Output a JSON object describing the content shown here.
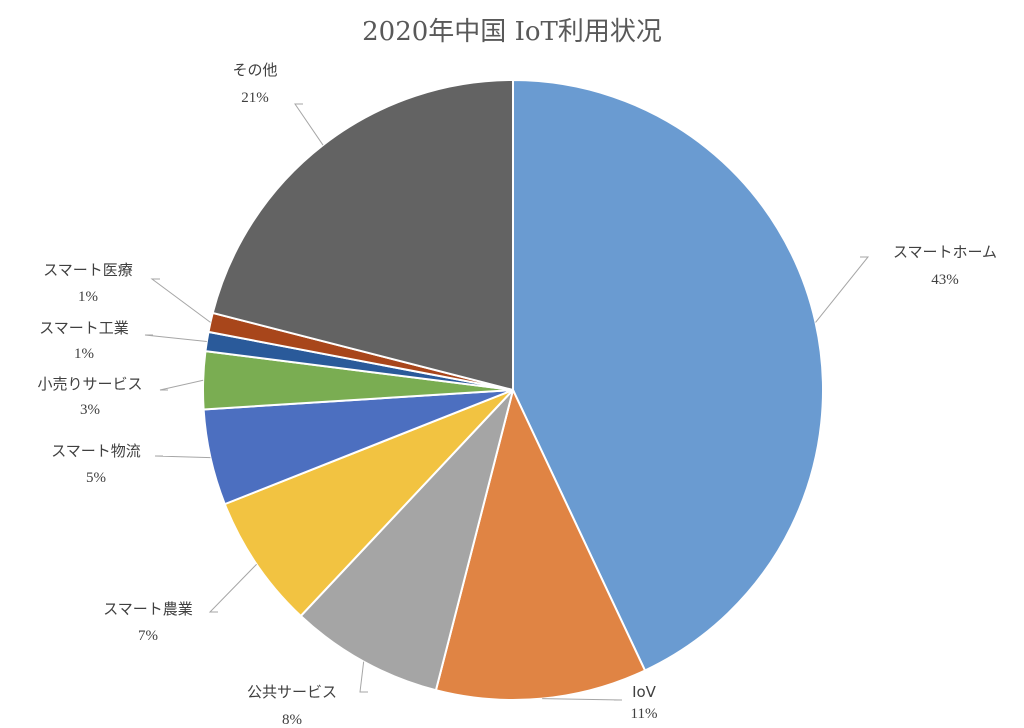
{
  "chart_data": {
    "type": "pie",
    "title": "2020年中国 IoT利用状况",
    "start_angle_deg": 0,
    "direction": "clockwise",
    "slices": [
      {
        "name": "スマートホーム",
        "value": 43,
        "label": "43%",
        "color": "#6A9BD1"
      },
      {
        "name": "IoV",
        "value": 11,
        "label": "11%",
        "color": "#E08444"
      },
      {
        "name": "公共サービス",
        "value": 8,
        "label": "8%",
        "color": "#A5A5A5"
      },
      {
        "name": "スマート農業",
        "value": 7,
        "label": "7%",
        "color": "#F2C341"
      },
      {
        "name": "スマート物流",
        "value": 5,
        "label": "5%",
        "color": "#4C6FC0"
      },
      {
        "name": "小売りサービス",
        "value": 3,
        "label": "3%",
        "color": "#7AAD52"
      },
      {
        "name": "スマート工業",
        "value": 1,
        "label": "1%",
        "color": "#2A5A9A"
      },
      {
        "name": "スマート医療",
        "value": 1,
        "label": "1%",
        "color": "#A8461B"
      },
      {
        "name": "その他",
        "value": 21,
        "label": "21%",
        "color": "#636363"
      }
    ],
    "data_labels": "outside-with-leader-lines",
    "legend": "none"
  }
}
